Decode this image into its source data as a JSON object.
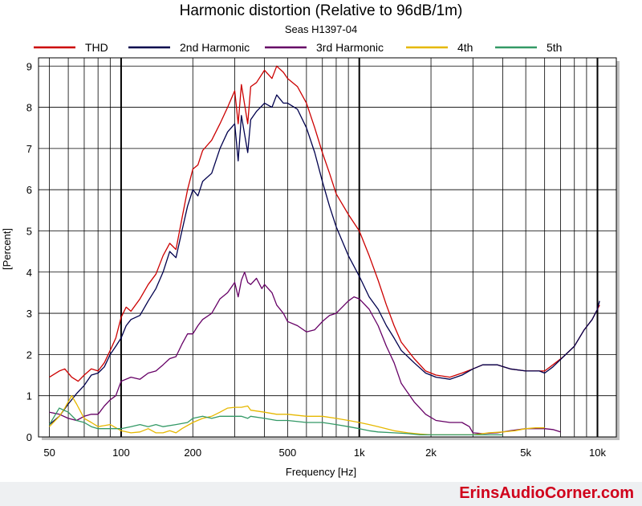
{
  "chart_data": {
    "type": "line",
    "title": "Harmonic distortion (Relative to 96dB/1m)",
    "subtitle": "Seas H1397-04",
    "xlabel": "Frequency [Hz]",
    "ylabel": "[Percent]",
    "x_scale": "log",
    "xlim": [
      45,
      12000
    ],
    "ylim": [
      0,
      9.2
    ],
    "grid": true,
    "legend_position": "top",
    "x_ticks": [
      {
        "value": 50,
        "label": "50"
      },
      {
        "value": 100,
        "label": "100"
      },
      {
        "value": 200,
        "label": "200"
      },
      {
        "value": 500,
        "label": "500"
      },
      {
        "value": 1000,
        "label": "1k"
      },
      {
        "value": 2000,
        "label": "2k"
      },
      {
        "value": 5000,
        "label": "5k"
      },
      {
        "value": 10000,
        "label": "10k"
      }
    ],
    "y_ticks": [
      0,
      1,
      2,
      3,
      4,
      5,
      6,
      7,
      8,
      9
    ],
    "series": [
      {
        "name": "THD",
        "color": "#cc0000",
        "points": [
          [
            50,
            1.45
          ],
          [
            55,
            1.6
          ],
          [
            58,
            1.65
          ],
          [
            62,
            1.45
          ],
          [
            66,
            1.35
          ],
          [
            70,
            1.5
          ],
          [
            75,
            1.65
          ],
          [
            80,
            1.6
          ],
          [
            85,
            1.8
          ],
          [
            90,
            2.1
          ],
          [
            95,
            2.4
          ],
          [
            100,
            2.9
          ],
          [
            105,
            3.15
          ],
          [
            110,
            3.05
          ],
          [
            120,
            3.35
          ],
          [
            130,
            3.7
          ],
          [
            140,
            3.95
          ],
          [
            150,
            4.4
          ],
          [
            160,
            4.7
          ],
          [
            170,
            4.55
          ],
          [
            180,
            5.3
          ],
          [
            190,
            6.0
          ],
          [
            200,
            6.5
          ],
          [
            210,
            6.6
          ],
          [
            220,
            6.95
          ],
          [
            240,
            7.2
          ],
          [
            260,
            7.6
          ],
          [
            280,
            8.0
          ],
          [
            300,
            8.4
          ],
          [
            310,
            7.6
          ],
          [
            320,
            8.55
          ],
          [
            340,
            7.6
          ],
          [
            350,
            8.5
          ],
          [
            370,
            8.6
          ],
          [
            400,
            8.9
          ],
          [
            430,
            8.7
          ],
          [
            450,
            9.0
          ],
          [
            480,
            8.85
          ],
          [
            500,
            8.7
          ],
          [
            550,
            8.5
          ],
          [
            600,
            8.1
          ],
          [
            650,
            7.5
          ],
          [
            700,
            6.9
          ],
          [
            750,
            6.4
          ],
          [
            800,
            5.9
          ],
          [
            900,
            5.4
          ],
          [
            1000,
            5.0
          ],
          [
            1100,
            4.4
          ],
          [
            1200,
            3.8
          ],
          [
            1300,
            3.2
          ],
          [
            1400,
            2.7
          ],
          [
            1500,
            2.3
          ],
          [
            1700,
            1.9
          ],
          [
            1900,
            1.6
          ],
          [
            2100,
            1.5
          ],
          [
            2400,
            1.45
          ],
          [
            2700,
            1.55
          ],
          [
            3000,
            1.65
          ],
          [
            3300,
            1.75
          ],
          [
            3800,
            1.75
          ],
          [
            4300,
            1.65
          ],
          [
            5000,
            1.6
          ],
          [
            5700,
            1.6
          ],
          [
            6000,
            1.6
          ],
          [
            6500,
            1.75
          ],
          [
            7200,
            1.95
          ],
          [
            8000,
            2.2
          ],
          [
            8800,
            2.6
          ],
          [
            9500,
            2.85
          ],
          [
            10000,
            3.1
          ],
          [
            10200,
            3.2
          ]
        ]
      },
      {
        "name": "2nd Harmonic",
        "color": "#00004d",
        "points": [
          [
            50,
            0.3
          ],
          [
            55,
            0.5
          ],
          [
            60,
            0.8
          ],
          [
            65,
            1.05
          ],
          [
            70,
            1.25
          ],
          [
            75,
            1.5
          ],
          [
            80,
            1.55
          ],
          [
            85,
            1.7
          ],
          [
            90,
            2.0
          ],
          [
            95,
            2.2
          ],
          [
            100,
            2.4
          ],
          [
            105,
            2.7
          ],
          [
            110,
            2.85
          ],
          [
            120,
            2.95
          ],
          [
            130,
            3.3
          ],
          [
            140,
            3.6
          ],
          [
            150,
            4.0
          ],
          [
            160,
            4.5
          ],
          [
            170,
            4.35
          ],
          [
            180,
            5.0
          ],
          [
            190,
            5.6
          ],
          [
            200,
            6.0
          ],
          [
            210,
            5.85
          ],
          [
            220,
            6.2
          ],
          [
            240,
            6.4
          ],
          [
            260,
            7.0
          ],
          [
            280,
            7.4
          ],
          [
            300,
            7.6
          ],
          [
            310,
            6.7
          ],
          [
            320,
            7.8
          ],
          [
            340,
            6.9
          ],
          [
            350,
            7.7
          ],
          [
            370,
            7.9
          ],
          [
            400,
            8.1
          ],
          [
            430,
            8.0
          ],
          [
            450,
            8.3
          ],
          [
            480,
            8.1
          ],
          [
            500,
            8.1
          ],
          [
            550,
            7.95
          ],
          [
            600,
            7.5
          ],
          [
            650,
            6.9
          ],
          [
            700,
            6.2
          ],
          [
            750,
            5.6
          ],
          [
            800,
            5.1
          ],
          [
            900,
            4.4
          ],
          [
            1000,
            3.9
          ],
          [
            1100,
            3.4
          ],
          [
            1200,
            3.1
          ],
          [
            1300,
            2.7
          ],
          [
            1400,
            2.4
          ],
          [
            1500,
            2.1
          ],
          [
            1700,
            1.8
          ],
          [
            1900,
            1.55
          ],
          [
            2100,
            1.45
          ],
          [
            2400,
            1.4
          ],
          [
            2700,
            1.5
          ],
          [
            3000,
            1.65
          ],
          [
            3300,
            1.75
          ],
          [
            3800,
            1.75
          ],
          [
            4300,
            1.65
          ],
          [
            5000,
            1.6
          ],
          [
            5700,
            1.6
          ],
          [
            6000,
            1.55
          ],
          [
            6500,
            1.7
          ],
          [
            7200,
            1.95
          ],
          [
            8000,
            2.2
          ],
          [
            8800,
            2.6
          ],
          [
            9500,
            2.85
          ],
          [
            10000,
            3.1
          ],
          [
            10200,
            3.3
          ]
        ]
      },
      {
        "name": "3rd Harmonic",
        "color": "#660066",
        "points": [
          [
            50,
            0.6
          ],
          [
            55,
            0.55
          ],
          [
            60,
            0.45
          ],
          [
            65,
            0.4
          ],
          [
            70,
            0.5
          ],
          [
            75,
            0.55
          ],
          [
            80,
            0.55
          ],
          [
            85,
            0.75
          ],
          [
            90,
            0.9
          ],
          [
            95,
            1.0
          ],
          [
            100,
            1.35
          ],
          [
            110,
            1.45
          ],
          [
            120,
            1.4
          ],
          [
            130,
            1.55
          ],
          [
            140,
            1.6
          ],
          [
            150,
            1.75
          ],
          [
            160,
            1.9
          ],
          [
            170,
            1.95
          ],
          [
            180,
            2.25
          ],
          [
            190,
            2.5
          ],
          [
            200,
            2.5
          ],
          [
            210,
            2.7
          ],
          [
            220,
            2.85
          ],
          [
            240,
            3.0
          ],
          [
            260,
            3.35
          ],
          [
            280,
            3.5
          ],
          [
            300,
            3.75
          ],
          [
            310,
            3.4
          ],
          [
            320,
            3.8
          ],
          [
            330,
            4.0
          ],
          [
            340,
            3.75
          ],
          [
            350,
            3.7
          ],
          [
            370,
            3.85
          ],
          [
            390,
            3.6
          ],
          [
            400,
            3.7
          ],
          [
            430,
            3.5
          ],
          [
            450,
            3.2
          ],
          [
            480,
            3.0
          ],
          [
            500,
            2.8
          ],
          [
            550,
            2.7
          ],
          [
            600,
            2.55
          ],
          [
            650,
            2.6
          ],
          [
            700,
            2.8
          ],
          [
            750,
            2.95
          ],
          [
            800,
            3.0
          ],
          [
            900,
            3.3
          ],
          [
            950,
            3.4
          ],
          [
            1000,
            3.35
          ],
          [
            1100,
            3.1
          ],
          [
            1200,
            2.7
          ],
          [
            1300,
            2.2
          ],
          [
            1400,
            1.8
          ],
          [
            1500,
            1.3
          ],
          [
            1700,
            0.85
          ],
          [
            1900,
            0.55
          ],
          [
            2100,
            0.4
          ],
          [
            2400,
            0.35
          ],
          [
            2700,
            0.35
          ],
          [
            2900,
            0.25
          ],
          [
            3000,
            0.1
          ],
          [
            3300,
            0.08
          ],
          [
            3800,
            0.1
          ],
          [
            4300,
            0.15
          ],
          [
            5000,
            0.2
          ],
          [
            5700,
            0.2
          ],
          [
            6000,
            0.2
          ],
          [
            6500,
            0.18
          ],
          [
            7000,
            0.12
          ]
        ]
      },
      {
        "name": "4th",
        "color": "#e6b800",
        "points": [
          [
            50,
            0.25
          ],
          [
            55,
            0.5
          ],
          [
            58,
            0.7
          ],
          [
            62,
            1.0
          ],
          [
            65,
            0.8
          ],
          [
            70,
            0.45
          ],
          [
            75,
            0.35
          ],
          [
            80,
            0.25
          ],
          [
            90,
            0.3
          ],
          [
            100,
            0.15
          ],
          [
            110,
            0.1
          ],
          [
            120,
            0.12
          ],
          [
            130,
            0.2
          ],
          [
            140,
            0.1
          ],
          [
            150,
            0.1
          ],
          [
            160,
            0.15
          ],
          [
            170,
            0.1
          ],
          [
            180,
            0.2
          ],
          [
            200,
            0.35
          ],
          [
            220,
            0.45
          ],
          [
            240,
            0.5
          ],
          [
            260,
            0.6
          ],
          [
            280,
            0.7
          ],
          [
            300,
            0.72
          ],
          [
            320,
            0.72
          ],
          [
            340,
            0.75
          ],
          [
            350,
            0.65
          ],
          [
            400,
            0.6
          ],
          [
            450,
            0.55
          ],
          [
            500,
            0.55
          ],
          [
            600,
            0.5
          ],
          [
            700,
            0.5
          ],
          [
            800,
            0.45
          ],
          [
            900,
            0.4
          ],
          [
            1000,
            0.35
          ],
          [
            1100,
            0.3
          ],
          [
            1200,
            0.25
          ],
          [
            1400,
            0.15
          ],
          [
            1600,
            0.1
          ],
          [
            1800,
            0.07
          ],
          [
            2000,
            0.05
          ],
          [
            2500,
            0.05
          ],
          [
            3000,
            0.05
          ],
          [
            3500,
            0.1
          ],
          [
            4000,
            0.12
          ],
          [
            4500,
            0.15
          ],
          [
            5000,
            0.2
          ],
          [
            5500,
            0.22
          ],
          [
            6000,
            0.22
          ]
        ]
      },
      {
        "name": "5th",
        "color": "#339966",
        "points": [
          [
            50,
            0.3
          ],
          [
            55,
            0.7
          ],
          [
            60,
            0.6
          ],
          [
            65,
            0.4
          ],
          [
            70,
            0.35
          ],
          [
            75,
            0.25
          ],
          [
            80,
            0.2
          ],
          [
            90,
            0.2
          ],
          [
            100,
            0.2
          ],
          [
            110,
            0.25
          ],
          [
            120,
            0.3
          ],
          [
            130,
            0.25
          ],
          [
            140,
            0.3
          ],
          [
            150,
            0.25
          ],
          [
            170,
            0.3
          ],
          [
            190,
            0.35
          ],
          [
            200,
            0.45
          ],
          [
            220,
            0.5
          ],
          [
            240,
            0.45
          ],
          [
            260,
            0.5
          ],
          [
            280,
            0.5
          ],
          [
            300,
            0.5
          ],
          [
            320,
            0.5
          ],
          [
            340,
            0.45
          ],
          [
            350,
            0.5
          ],
          [
            400,
            0.45
          ],
          [
            450,
            0.4
          ],
          [
            500,
            0.4
          ],
          [
            600,
            0.35
          ],
          [
            700,
            0.35
          ],
          [
            800,
            0.3
          ],
          [
            900,
            0.25
          ],
          [
            1000,
            0.2
          ],
          [
            1100,
            0.15
          ],
          [
            1200,
            0.12
          ],
          [
            1400,
            0.1
          ],
          [
            1600,
            0.08
          ],
          [
            1800,
            0.05
          ],
          [
            2000,
            0.05
          ],
          [
            2500,
            0.05
          ],
          [
            3000,
            0.05
          ],
          [
            3500,
            0.05
          ],
          [
            4000,
            0.05
          ]
        ]
      }
    ]
  },
  "footer": {
    "brand": "ErinsAudioCorner.com"
  }
}
